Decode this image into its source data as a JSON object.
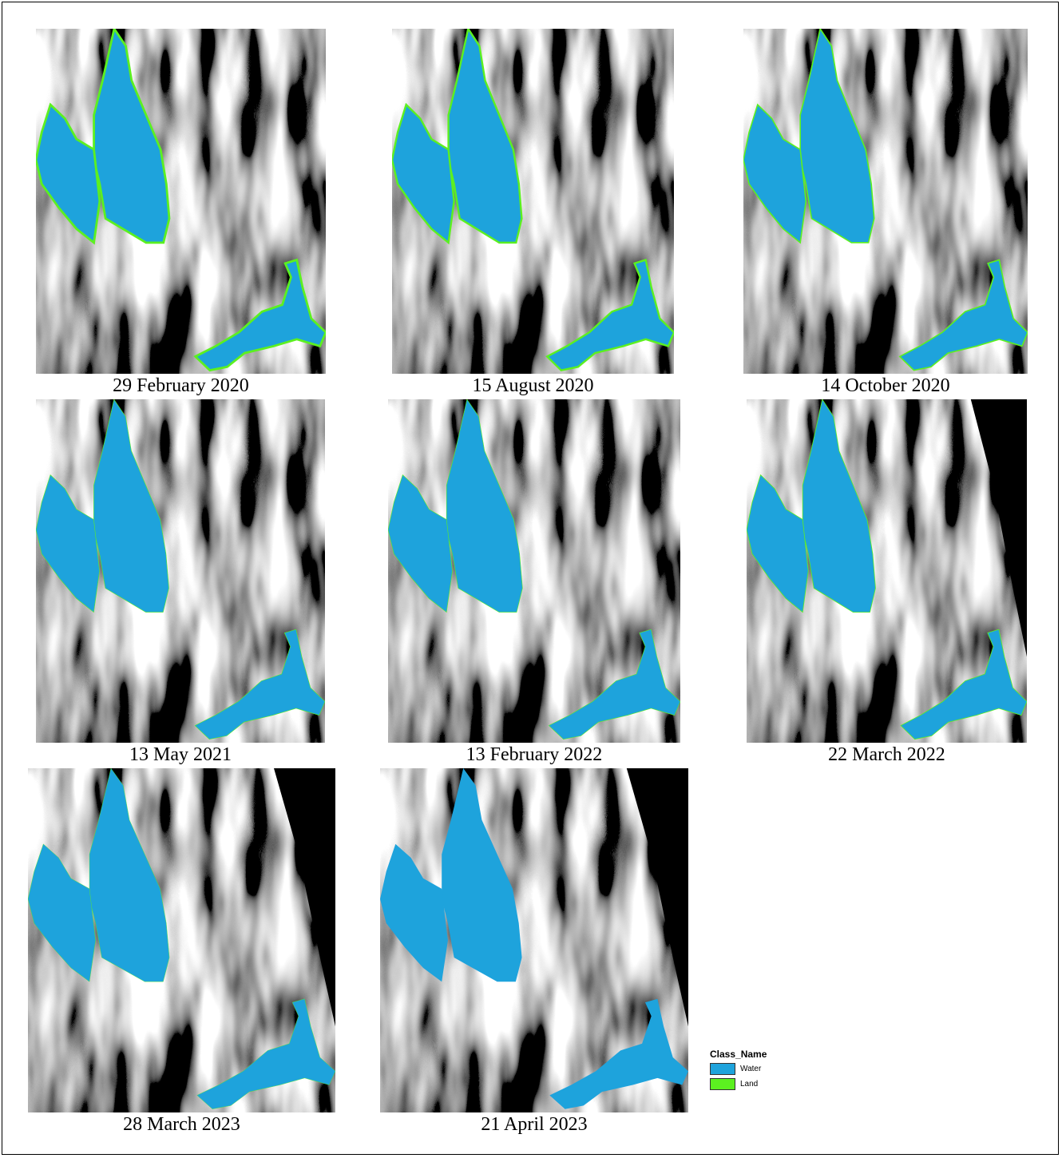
{
  "panels": [
    {
      "caption": "29 February 2020"
    },
    {
      "caption": "15 August 2020"
    },
    {
      "caption": "14 October 2020"
    },
    {
      "caption": "13 May 2021"
    },
    {
      "caption": "13 February 2022"
    },
    {
      "caption": "22 March 2022"
    },
    {
      "caption": "28 March 2023"
    },
    {
      "caption": "21 April 2023"
    }
  ],
  "legend": {
    "title": "Class_Name",
    "items": [
      {
        "label": "Water",
        "color": "#1ea3dc"
      },
      {
        "label": "Land",
        "color": "#5cf020"
      }
    ]
  }
}
